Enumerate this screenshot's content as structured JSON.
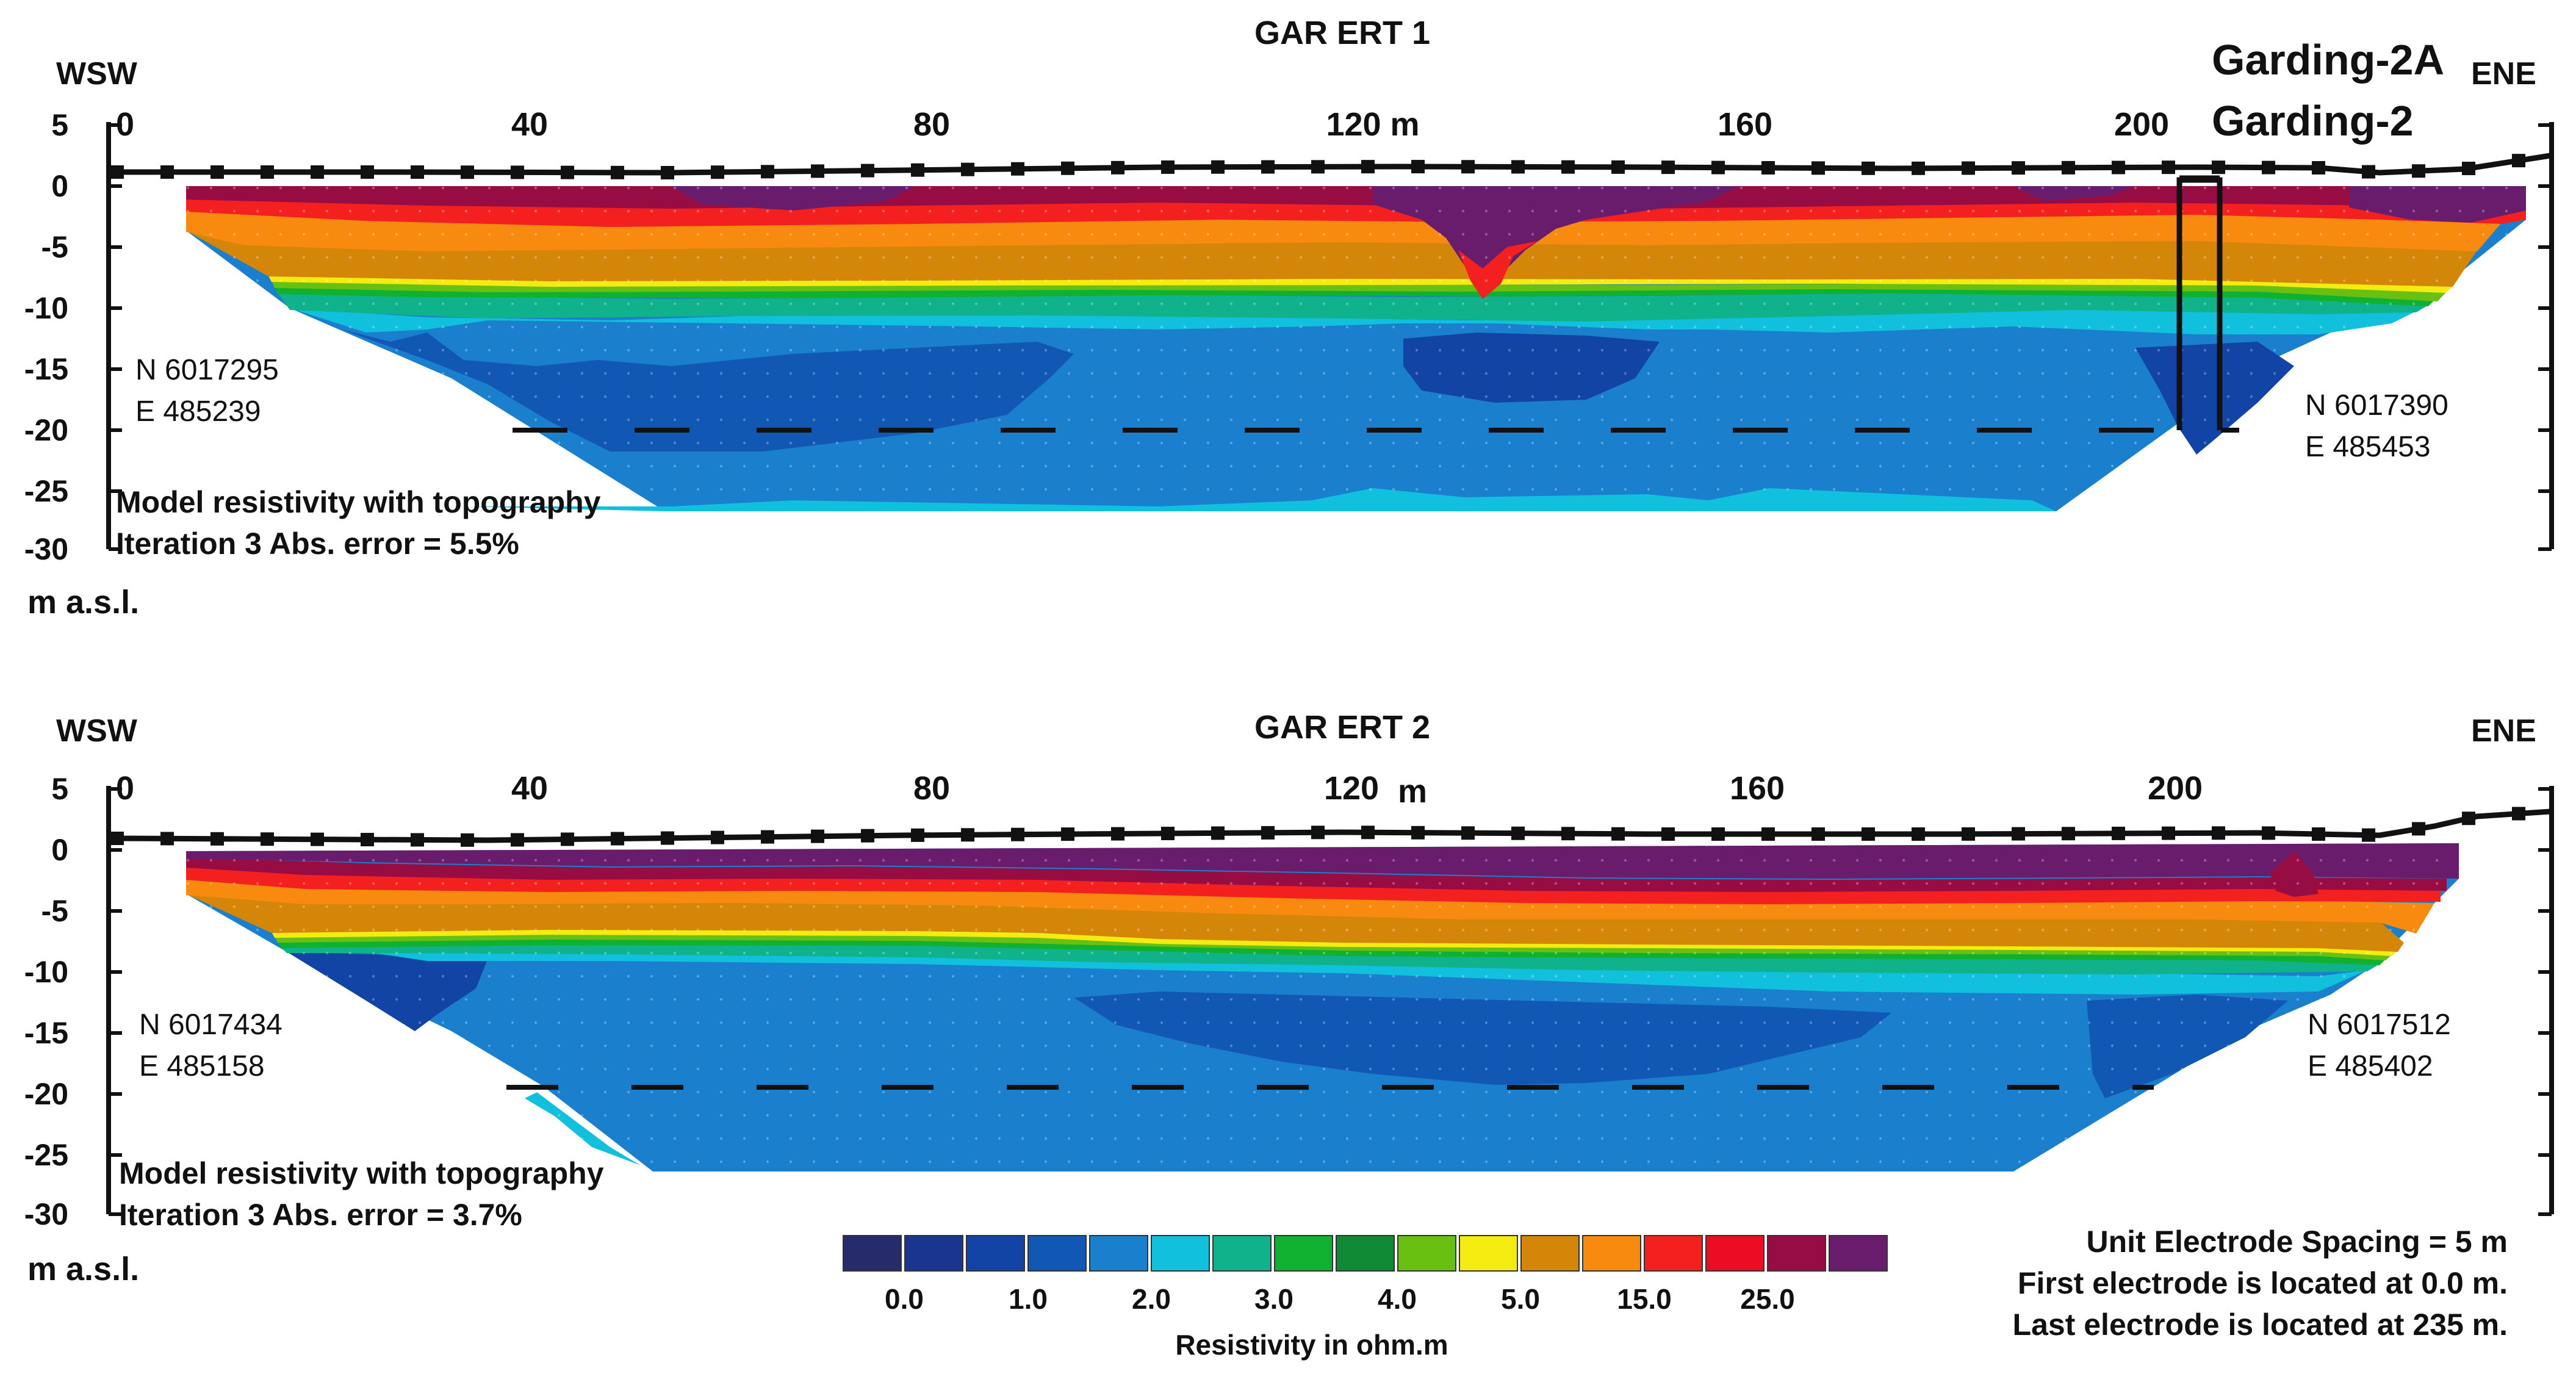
{
  "panels": [
    {
      "title": "GAR ERT 1",
      "left_dir": "WSW",
      "right_dir": "ENE",
      "x_ticks": [
        "0",
        "40",
        "80",
        "120 m",
        "160",
        "200"
      ],
      "y_ticks": [
        "5",
        "0",
        "-5",
        "-10",
        "-15",
        "-20",
        "-25",
        "-30"
      ],
      "y_unit": "m a.s.l.",
      "coord_left": [
        "N 6017295",
        "E 485239"
      ],
      "coord_right": [
        "N 6017390",
        "E 485453"
      ],
      "model_note": [
        "Model resistivity with topography",
        "Iteration 3 Abs. error = 5.5%"
      ],
      "borehole_labels": [
        "Garding-2A",
        "Garding-2"
      ]
    },
    {
      "title": "GAR ERT 2",
      "left_dir": "WSW",
      "right_dir": "ENE",
      "x_ticks": [
        "0",
        "40",
        "80",
        "120",
        "m",
        "160",
        "200"
      ],
      "y_ticks": [
        "5",
        "0",
        "-5",
        "-10",
        "-15",
        "-20",
        "-25",
        "-30"
      ],
      "y_unit": "m a.s.l.",
      "coord_left": [
        "N 6017434",
        "E 485158"
      ],
      "coord_right": [
        "N 6017512",
        "E 485402"
      ],
      "model_note": [
        "Model resistivity with topography",
        "Iteration 3 Abs. error = 3.7%"
      ]
    }
  ],
  "legend": {
    "title": "Resistivity in ohm.m",
    "labels": [
      "0.0",
      "1.0",
      "2.0",
      "3.0",
      "4.0",
      "5.0",
      "15.0",
      "25.0"
    ],
    "colors": [
      "#262b6c",
      "#1a3590",
      "#1244a6",
      "#1157b4",
      "#1a7fcc",
      "#10c0dc",
      "#10b28c",
      "#10b030",
      "#108a34",
      "#6ac010",
      "#f4ec10",
      "#d48608",
      "#f88a10",
      "#f42020",
      "#ec0c24",
      "#980c44",
      "#6a1c6c"
    ]
  },
  "notes": [
    "Unit Electrode Spacing = 5 m",
    "First electrode is located at 0.0 m.",
    "Last electrode is located at 235 m."
  ]
}
